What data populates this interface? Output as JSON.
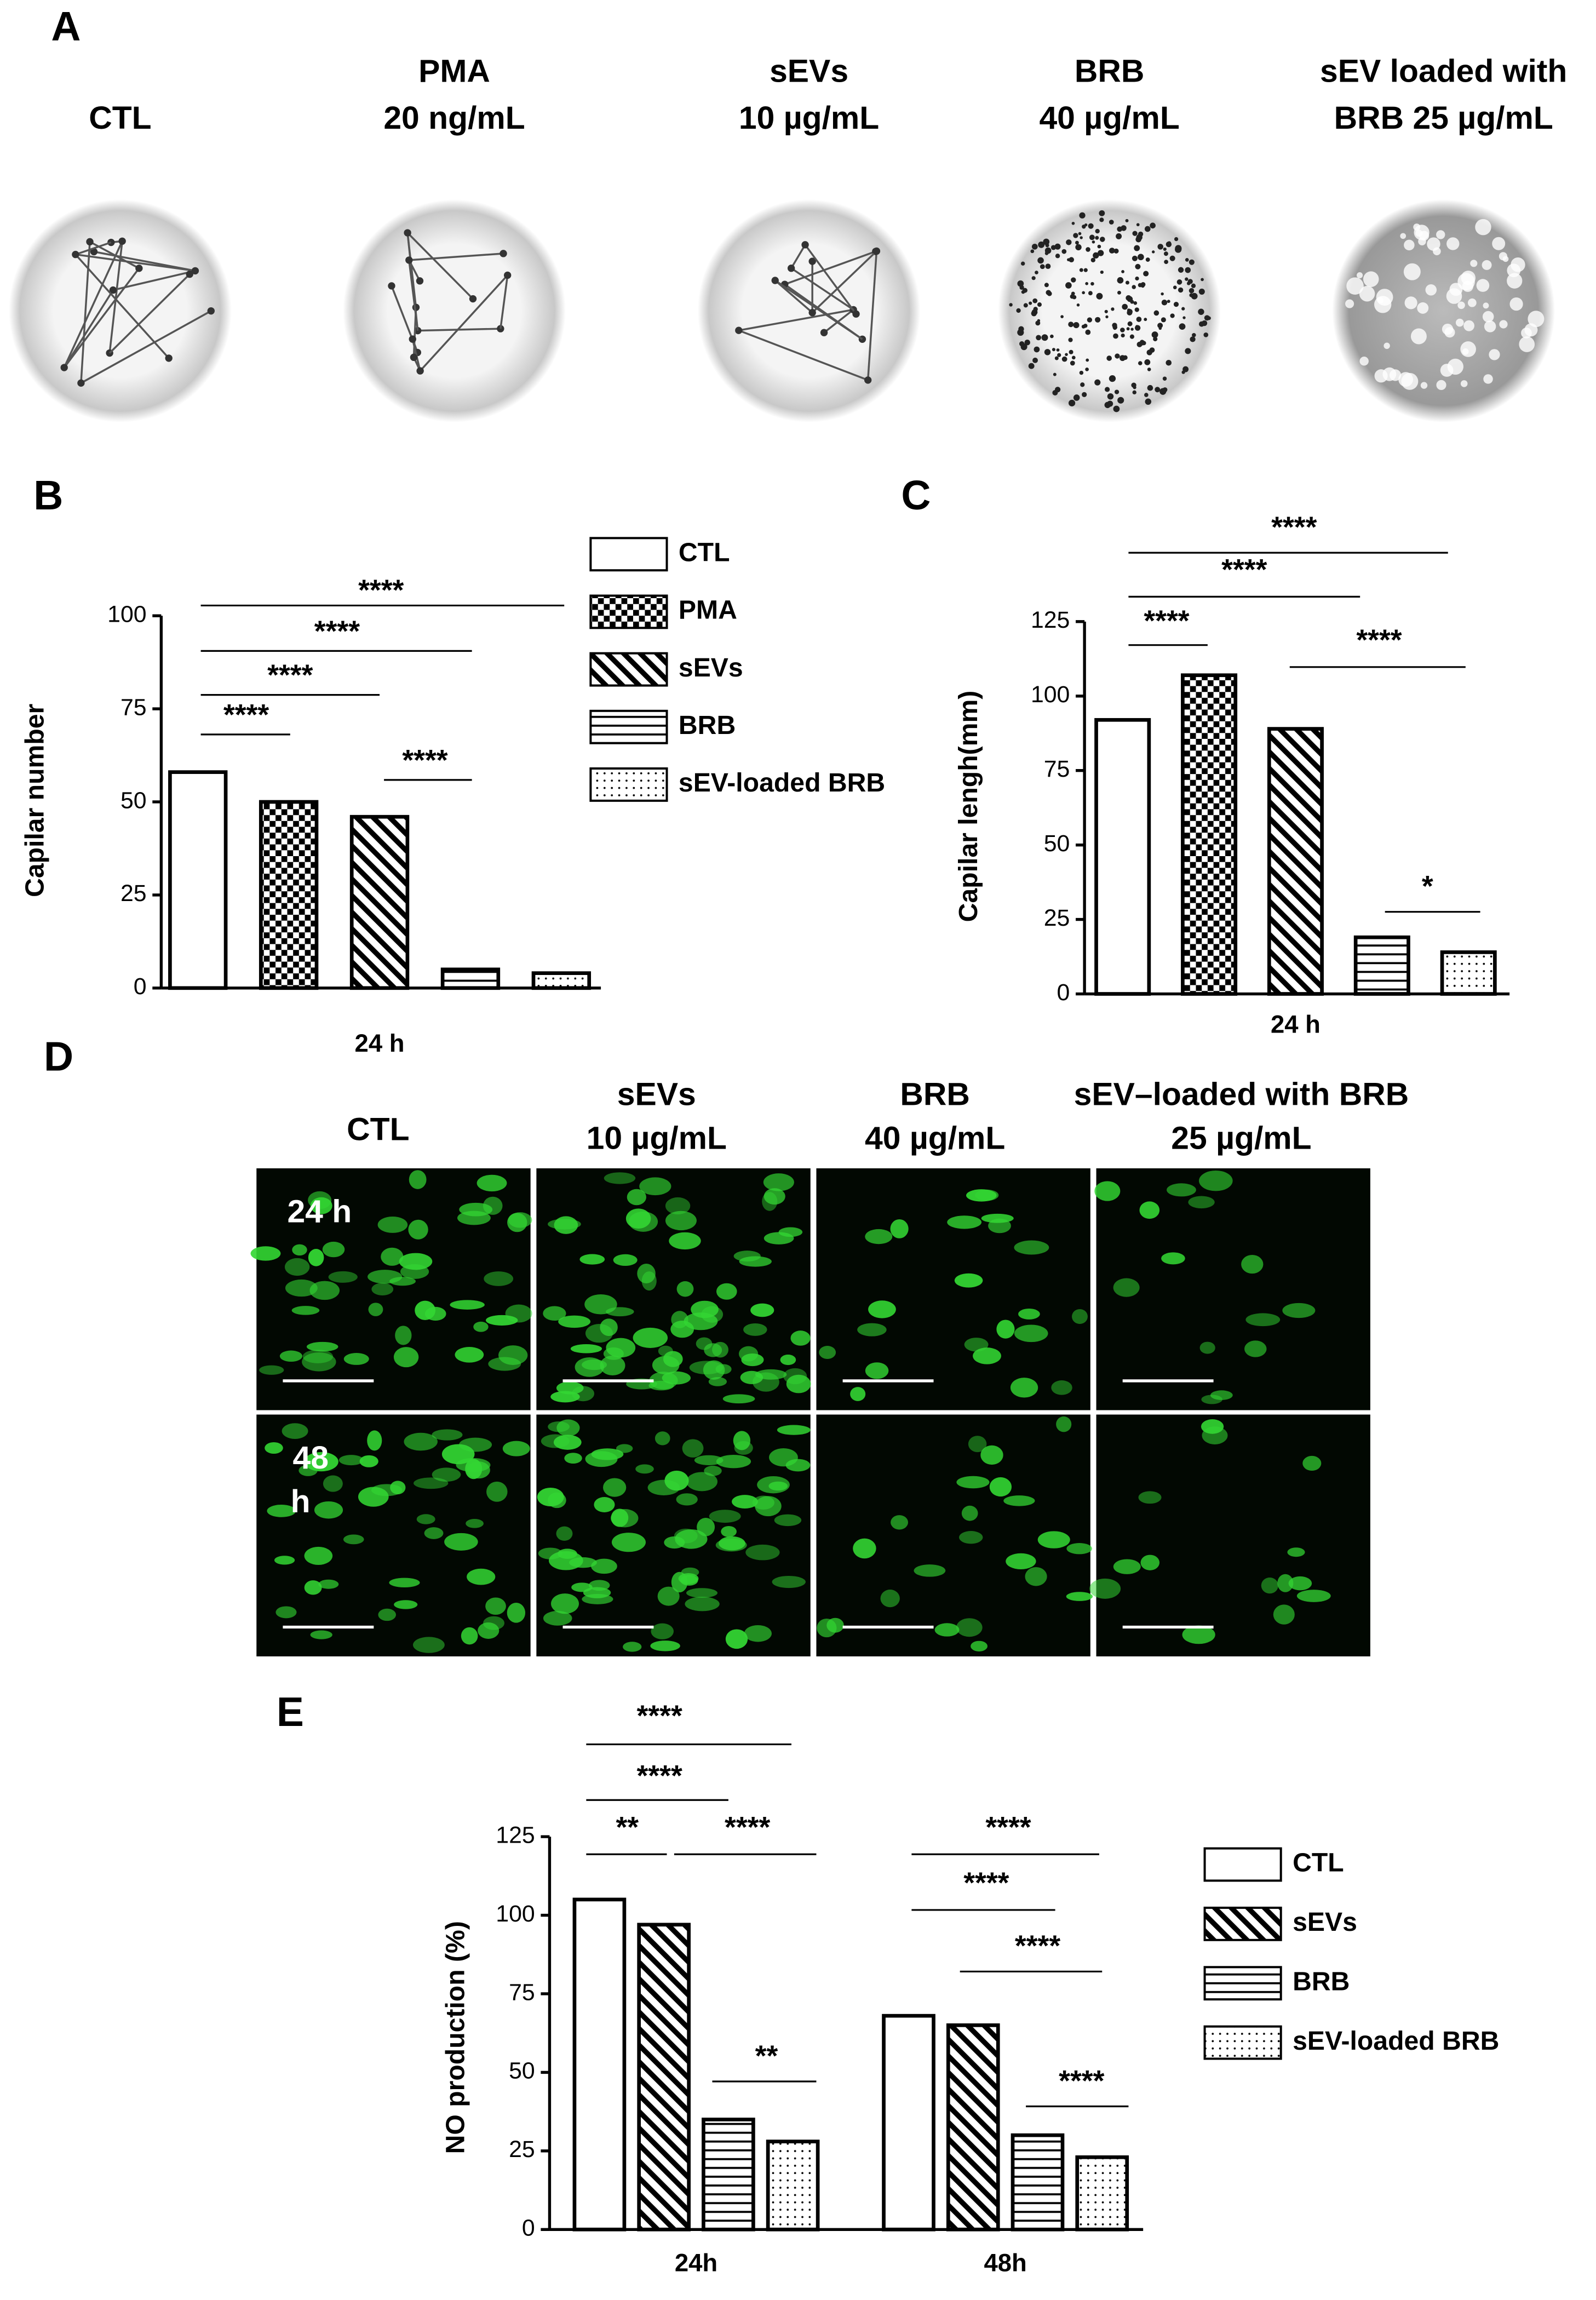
{
  "figure": {
    "panel_labels": [
      "A",
      "B",
      "C",
      "D",
      "E"
    ],
    "panel_a": {
      "captions": [
        [
          "CTL"
        ],
        [
          "PMA",
          "20 ng/mL"
        ],
        [
          "sEVs",
          "10 µg/mL"
        ],
        [
          "BRB",
          "40 µg/mL"
        ],
        [
          "sEV loaded with",
          "BRB 25 µg/mL"
        ]
      ]
    },
    "panel_d": {
      "columns": [
        [
          "CTL"
        ],
        [
          "sEVs",
          "10 µg/mL"
        ],
        [
          "BRB",
          "40 µg/mL"
        ],
        [
          "sEV–loaded with BRB",
          "25 µg/mL"
        ]
      ],
      "rows": [
        [
          "24 h"
        ],
        [
          "48",
          "h"
        ]
      ]
    }
  },
  "chart_data": [
    {
      "type": "bar",
      "ylabel": "Capilar number",
      "categories": [
        "24 h"
      ],
      "series": [
        {
          "name": "CTL",
          "pattern": "none",
          "values": [
            58
          ]
        },
        {
          "name": "PMA",
          "pattern": "checker",
          "values": [
            50
          ]
        },
        {
          "name": "sEVs",
          "pattern": "diagonal",
          "values": [
            46
          ]
        },
        {
          "name": "BRB",
          "pattern": "horizontal",
          "values": [
            5
          ]
        },
        {
          "name": "sEV-loaded BRB",
          "pattern": "dots",
          "values": [
            4
          ]
        }
      ],
      "ylim": [
        0,
        100
      ],
      "yticks": [
        0,
        25,
        50,
        75,
        100
      ],
      "legend": true,
      "color": "#000000",
      "annotations": [
        "****",
        "****",
        "****",
        "****",
        "****"
      ]
    },
    {
      "type": "bar",
      "ylabel": "Capilar lengh(mm)",
      "categories": [
        "24 h"
      ],
      "series": [
        {
          "pattern": "none",
          "values": [
            92
          ]
        },
        {
          "pattern": "checker",
          "values": [
            107
          ]
        },
        {
          "pattern": "diagonal",
          "values": [
            89
          ]
        },
        {
          "pattern": "horizontal",
          "values": [
            19
          ]
        },
        {
          "pattern": "dots",
          "values": [
            14
          ]
        }
      ],
      "ylim": [
        0,
        125
      ],
      "yticks": [
        0,
        25,
        50,
        75,
        100,
        125
      ],
      "legend": false,
      "color": "#000000",
      "annotations": [
        "****",
        "****",
        "****",
        "****",
        "*"
      ]
    },
    {
      "type": "bar",
      "ylabel": "NO production (%)",
      "categories": [
        "24h",
        "48h"
      ],
      "series": [
        {
          "name": "CTL",
          "pattern": "none",
          "values": [
            105,
            68
          ]
        },
        {
          "name": "sEVs",
          "pattern": "diagonal",
          "values": [
            97,
            65
          ]
        },
        {
          "name": "BRB",
          "pattern": "horizontal",
          "values": [
            35,
            30
          ]
        },
        {
          "name": "sEV-loaded BRB",
          "pattern": "dots",
          "values": [
            28,
            23
          ]
        }
      ],
      "ylim": [
        0,
        125
      ],
      "yticks": [
        0,
        25,
        50,
        75,
        100,
        125
      ],
      "legend": true,
      "color": "#000000",
      "annotations": [
        "****",
        "****",
        "**",
        "****",
        "**",
        "****",
        "****",
        "****",
        "****"
      ]
    }
  ]
}
